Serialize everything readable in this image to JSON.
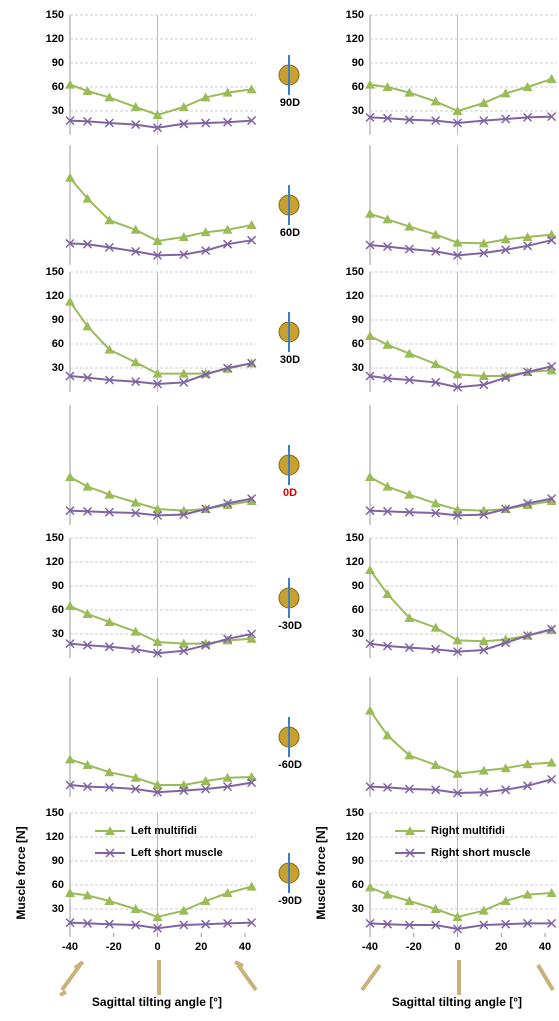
{
  "row_labels": [
    {
      "text": "90D",
      "color": "#000000"
    },
    {
      "text": "60D",
      "color": "#000000"
    },
    {
      "text": "30D",
      "color": "#000000"
    },
    {
      "text": "0D",
      "color": "#e00000"
    },
    {
      "text": "-30D",
      "color": "#000000"
    },
    {
      "text": "-60D",
      "color": "#000000"
    },
    {
      "text": "-90D",
      "color": "#000000"
    }
  ],
  "chart_data": [
    {
      "type": "line",
      "x": [
        -40,
        -32,
        -22,
        -10,
        0,
        12,
        22,
        32,
        43
      ],
      "xlim": [
        -40,
        45
      ],
      "ylim": [
        0,
        150
      ],
      "yticks": [
        30,
        60,
        90,
        120,
        150
      ],
      "grid": true,
      "series": [
        {
          "color": "#9bbb59",
          "values": [
            63,
            55,
            47,
            35,
            25,
            35,
            47,
            53,
            57
          ]
        },
        {
          "color": "#8064a2",
          "values": [
            18,
            17,
            15,
            13,
            9,
            14,
            15,
            16,
            18
          ]
        }
      ]
    },
    {
      "type": "line",
      "x": [
        -40,
        -32,
        -22,
        -10,
        0,
        12,
        22,
        32,
        43
      ],
      "xlim": [
        -40,
        45
      ],
      "ylim": [
        0,
        150
      ],
      "yticks": [
        30,
        60,
        90,
        120,
        150
      ],
      "grid": true,
      "series": [
        {
          "color": "#9bbb59",
          "values": [
            63,
            60,
            53,
            42,
            30,
            40,
            52,
            60,
            70
          ]
        },
        {
          "color": "#8064a2",
          "values": [
            22,
            21,
            19,
            18,
            15,
            18,
            20,
            22,
            23
          ]
        }
      ]
    },
    {
      "type": "line",
      "x": [
        -40,
        -32,
        -22,
        -10,
        0,
        12,
        22,
        32,
        43
      ],
      "xlim": [
        -40,
        45
      ],
      "ylim": [
        0,
        150
      ],
      "grid": false,
      "series": [
        {
          "color": "#9bbb59",
          "values": [
            109,
            83,
            56,
            44,
            30,
            35,
            41,
            44,
            50
          ]
        },
        {
          "color": "#8064a2",
          "values": [
            27,
            26,
            22,
            17,
            12,
            13,
            18,
            26,
            31
          ]
        }
      ]
    },
    {
      "type": "line",
      "x": [
        -40,
        -32,
        -22,
        -10,
        0,
        12,
        22,
        32,
        43
      ],
      "xlim": [
        -40,
        45
      ],
      "ylim": [
        0,
        150
      ],
      "grid": false,
      "series": [
        {
          "color": "#9bbb59",
          "values": [
            64,
            57,
            48,
            38,
            28,
            27,
            32,
            35,
            38
          ]
        },
        {
          "color": "#8064a2",
          "values": [
            25,
            23,
            20,
            17,
            12,
            15,
            19,
            24,
            31
          ]
        }
      ]
    },
    {
      "type": "line",
      "x": [
        -40,
        -32,
        -22,
        -10,
        0,
        12,
        22,
        32,
        43
      ],
      "xlim": [
        -40,
        45
      ],
      "ylim": [
        0,
        150
      ],
      "yticks": [
        30,
        60,
        90,
        120,
        150
      ],
      "grid": true,
      "series": [
        {
          "color": "#9bbb59",
          "values": [
            113,
            82,
            53,
            37,
            23,
            23,
            23,
            29,
            36
          ]
        },
        {
          "color": "#8064a2",
          "values": [
            20,
            18,
            15,
            13,
            10,
            12,
            22,
            30,
            36
          ]
        }
      ]
    },
    {
      "type": "line",
      "x": [
        -40,
        -32,
        -22,
        -10,
        0,
        12,
        22,
        32,
        43
      ],
      "xlim": [
        -40,
        45
      ],
      "ylim": [
        0,
        150
      ],
      "yticks": [
        30,
        60,
        90,
        120,
        150
      ],
      "grid": true,
      "series": [
        {
          "color": "#9bbb59",
          "values": [
            70,
            59,
            48,
            35,
            22,
            20,
            20,
            25,
            27
          ]
        },
        {
          "color": "#8064a2",
          "values": [
            20,
            17,
            15,
            12,
            6,
            9,
            18,
            25,
            32
          ]
        }
      ]
    },
    {
      "type": "line",
      "x": [
        -40,
        -32,
        -22,
        -10,
        0,
        12,
        22,
        32,
        43
      ],
      "xlim": [
        -40,
        45
      ],
      "ylim": [
        0,
        150
      ],
      "grid": false,
      "series": [
        {
          "color": "#9bbb59",
          "values": [
            60,
            48,
            38,
            28,
            20,
            18,
            20,
            25,
            30
          ]
        },
        {
          "color": "#8064a2",
          "values": [
            18,
            17,
            16,
            15,
            12,
            13,
            20,
            27,
            33
          ]
        }
      ]
    },
    {
      "type": "line",
      "x": [
        -40,
        -32,
        -22,
        -10,
        0,
        12,
        22,
        32,
        43
      ],
      "xlim": [
        -40,
        45
      ],
      "ylim": [
        0,
        150
      ],
      "grid": false,
      "series": [
        {
          "color": "#9bbb59",
          "values": [
            60,
            48,
            38,
            27,
            19,
            18,
            20,
            25,
            30
          ]
        },
        {
          "color": "#8064a2",
          "values": [
            18,
            17,
            16,
            15,
            12,
            13,
            20,
            27,
            33
          ]
        }
      ]
    },
    {
      "type": "line",
      "x": [
        -40,
        -32,
        -22,
        -10,
        0,
        12,
        22,
        32,
        43
      ],
      "xlim": [
        -40,
        45
      ],
      "ylim": [
        0,
        150
      ],
      "yticks": [
        30,
        60,
        90,
        120,
        150
      ],
      "grid": true,
      "series": [
        {
          "color": "#9bbb59",
          "values": [
            65,
            55,
            45,
            33,
            20,
            18,
            18,
            22,
            24
          ]
        },
        {
          "color": "#8064a2",
          "values": [
            18,
            16,
            14,
            11,
            6,
            9,
            16,
            24,
            30
          ]
        }
      ]
    },
    {
      "type": "line",
      "x": [
        -40,
        -32,
        -22,
        -10,
        0,
        12,
        22,
        32,
        43
      ],
      "xlim": [
        -40,
        45
      ],
      "ylim": [
        0,
        150
      ],
      "yticks": [
        30,
        60,
        90,
        120,
        150
      ],
      "grid": true,
      "series": [
        {
          "color": "#9bbb59",
          "values": [
            110,
            80,
            50,
            38,
            22,
            21,
            23,
            28,
            35
          ]
        },
        {
          "color": "#8064a2",
          "values": [
            18,
            15,
            13,
            11,
            8,
            10,
            19,
            28,
            36
          ]
        }
      ]
    },
    {
      "type": "line",
      "x": [
        -40,
        -32,
        -22,
        -10,
        0,
        12,
        22,
        32,
        43
      ],
      "xlim": [
        -40,
        45
      ],
      "ylim": [
        0,
        150
      ],
      "grid": false,
      "series": [
        {
          "color": "#9bbb59",
          "values": [
            47,
            40,
            31,
            24,
            15,
            15,
            20,
            24,
            25
          ]
        },
        {
          "color": "#8064a2",
          "values": [
            15,
            13,
            12,
            10,
            6,
            8,
            10,
            13,
            18
          ]
        }
      ]
    },
    {
      "type": "line",
      "x": [
        -40,
        -32,
        -22,
        -10,
        0,
        12,
        22,
        32,
        43
      ],
      "xlim": [
        -40,
        45
      ],
      "ylim": [
        0,
        150
      ],
      "grid": false,
      "series": [
        {
          "color": "#9bbb59",
          "values": [
            108,
            77,
            52,
            40,
            29,
            33,
            36,
            41,
            43
          ]
        },
        {
          "color": "#8064a2",
          "values": [
            13,
            12,
            10,
            9,
            5,
            6,
            9,
            14,
            22
          ]
        }
      ]
    },
    {
      "type": "line",
      "x": [
        -40,
        -32,
        -22,
        -10,
        0,
        12,
        22,
        32,
        43
      ],
      "xlim": [
        -40,
        45
      ],
      "ylim": [
        0,
        150
      ],
      "yticks": [
        30,
        60,
        90,
        120,
        150
      ],
      "xticks": [
        -40,
        -20,
        0,
        20,
        40
      ],
      "grid": true,
      "ylabel": "Muscle force [N]",
      "xlabel": "Sagittal tilting angle [°]",
      "legend": "upper left",
      "series": [
        {
          "name": "Left multifidi",
          "color": "#9bbb59",
          "values": [
            50,
            47,
            40,
            30,
            20,
            28,
            40,
            50,
            58
          ]
        },
        {
          "name": "Left short muscle",
          "color": "#8064a2",
          "values": [
            13,
            12,
            11,
            10,
            6,
            10,
            11,
            12,
            13
          ]
        }
      ]
    },
    {
      "type": "line",
      "x": [
        -40,
        -32,
        -22,
        -10,
        0,
        12,
        22,
        32,
        43
      ],
      "xlim": [
        -40,
        45
      ],
      "ylim": [
        0,
        150
      ],
      "yticks": [
        30,
        60,
        90,
        120,
        150
      ],
      "xticks": [
        -40,
        -20,
        0,
        20,
        40
      ],
      "grid": true,
      "ylabel": "Muscle force [N]",
      "xlabel": "Sagittal tilting angle [°]",
      "legend": "upper left",
      "series": [
        {
          "name": "Right multifidi",
          "color": "#9bbb59",
          "values": [
            57,
            48,
            40,
            30,
            20,
            28,
            40,
            48,
            50
          ]
        },
        {
          "name": "Right short muscle",
          "color": "#8064a2",
          "values": [
            12,
            11,
            10,
            10,
            5,
            10,
            11,
            12,
            12
          ]
        }
      ]
    }
  ]
}
